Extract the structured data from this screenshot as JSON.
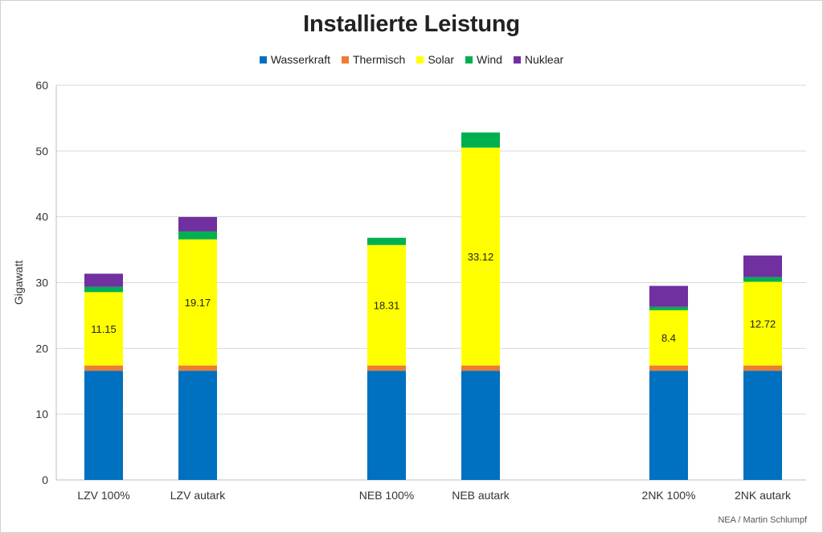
{
  "chart_data": {
    "type": "bar",
    "stacked": true,
    "title": "Installierte Leistung",
    "ylabel": "Gigawatt",
    "xlabel": "",
    "ylim": [
      0,
      60
    ],
    "yticks": [
      0,
      10,
      20,
      30,
      40,
      50,
      60
    ],
    "grid": true,
    "legend_position": "top",
    "categories": [
      "LZV 100%",
      "LZV autark",
      "NEB 100%",
      "NEB autark",
      "2NK 100%",
      "2NK autark"
    ],
    "series": [
      {
        "name": "Wasserkraft",
        "color": "#0070C0",
        "values": [
          16.6,
          16.6,
          16.6,
          16.6,
          16.6,
          16.6
        ]
      },
      {
        "name": "Thermisch",
        "color": "#ED7D31",
        "values": [
          0.8,
          0.8,
          0.8,
          0.8,
          0.8,
          0.8
        ]
      },
      {
        "name": "Solar",
        "color": "#FFFF00",
        "values": [
          11.15,
          19.17,
          18.31,
          33.12,
          8.4,
          12.72
        ],
        "labels": [
          "11.15",
          "19.17",
          "18.31",
          "33.12",
          "8.4",
          "12.72"
        ]
      },
      {
        "name": "Wind",
        "color": "#00B050",
        "values": [
          0.8,
          1.2,
          1.1,
          2.3,
          0.5,
          0.7
        ]
      },
      {
        "name": "Nuklear",
        "color": "#7030A0",
        "values": [
          2.0,
          2.2,
          0,
          0,
          3.2,
          3.3
        ]
      }
    ]
  },
  "credit": "NEA / Martin Schlumpf"
}
